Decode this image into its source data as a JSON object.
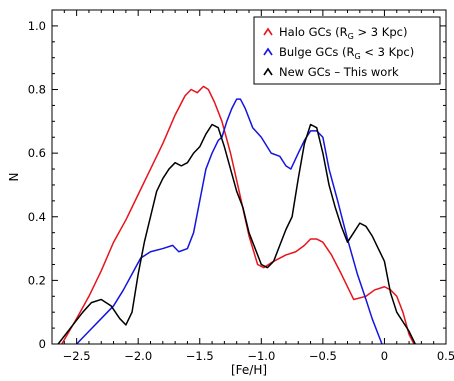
{
  "chart_data": {
    "type": "line",
    "title": "",
    "xlabel": "[Fe/H]",
    "ylabel": "N",
    "xlim": [
      -2.7,
      0.5
    ],
    "ylim": [
      0,
      1.05
    ],
    "xticks": [
      -2.5,
      -2.0,
      -1.5,
      -1.0,
      -0.5,
      0,
      0.5
    ],
    "xtick_labels": [
      "−2.5",
      "−2.0",
      "−1.5",
      "−1.0",
      "−0.5",
      "0",
      "0.5"
    ],
    "yticks": [
      0,
      0.2,
      0.4,
      0.6,
      0.8,
      1.0
    ],
    "ytick_labels": [
      "0",
      "0.2",
      "0.4",
      "0.6",
      "0.8",
      "1.0"
    ],
    "grid": false,
    "legend_position": "top-right",
    "series": [
      {
        "name": "Halo GCs (R_G > 3 Kpc)",
        "legend": {
          "pre": "Halo GCs (R",
          "sub": "G",
          "post": " > 3 Kpc)"
        },
        "color": "#e8141b",
        "points": [
          [
            -2.62,
            0.0
          ],
          [
            -2.5,
            0.08
          ],
          [
            -2.4,
            0.15
          ],
          [
            -2.3,
            0.23
          ],
          [
            -2.2,
            0.32
          ],
          [
            -2.1,
            0.39
          ],
          [
            -2.0,
            0.47
          ],
          [
            -1.9,
            0.55
          ],
          [
            -1.8,
            0.63
          ],
          [
            -1.7,
            0.72
          ],
          [
            -1.62,
            0.78
          ],
          [
            -1.57,
            0.8
          ],
          [
            -1.52,
            0.79
          ],
          [
            -1.47,
            0.81
          ],
          [
            -1.43,
            0.8
          ],
          [
            -1.38,
            0.76
          ],
          [
            -1.32,
            0.7
          ],
          [
            -1.25,
            0.6
          ],
          [
            -1.18,
            0.48
          ],
          [
            -1.1,
            0.34
          ],
          [
            -1.03,
            0.25
          ],
          [
            -0.98,
            0.24
          ],
          [
            -0.9,
            0.26
          ],
          [
            -0.8,
            0.28
          ],
          [
            -0.72,
            0.29
          ],
          [
            -0.65,
            0.31
          ],
          [
            -0.6,
            0.33
          ],
          [
            -0.55,
            0.33
          ],
          [
            -0.5,
            0.32
          ],
          [
            -0.43,
            0.28
          ],
          [
            -0.35,
            0.22
          ],
          [
            -0.25,
            0.14
          ],
          [
            -0.15,
            0.15
          ],
          [
            -0.08,
            0.17
          ],
          [
            0.0,
            0.18
          ],
          [
            0.05,
            0.17
          ],
          [
            0.1,
            0.15
          ],
          [
            0.15,
            0.1
          ],
          [
            0.2,
            0.03
          ],
          [
            0.24,
            0.0
          ]
        ]
      },
      {
        "name": "Bulge GCs (R_G < 3 Kpc)",
        "legend": {
          "pre": "Bulge GCs (R",
          "sub": "G",
          "post": " < 3 Kpc)"
        },
        "color": "#1515e0",
        "points": [
          [
            -2.5,
            0.0
          ],
          [
            -2.4,
            0.04
          ],
          [
            -2.3,
            0.08
          ],
          [
            -2.2,
            0.12
          ],
          [
            -2.12,
            0.17
          ],
          [
            -2.05,
            0.22
          ],
          [
            -1.98,
            0.27
          ],
          [
            -1.9,
            0.29
          ],
          [
            -1.8,
            0.3
          ],
          [
            -1.72,
            0.31
          ],
          [
            -1.67,
            0.29
          ],
          [
            -1.6,
            0.3
          ],
          [
            -1.55,
            0.35
          ],
          [
            -1.5,
            0.45
          ],
          [
            -1.45,
            0.55
          ],
          [
            -1.4,
            0.6
          ],
          [
            -1.35,
            0.64
          ],
          [
            -1.32,
            0.65
          ],
          [
            -1.28,
            0.7
          ],
          [
            -1.24,
            0.74
          ],
          [
            -1.2,
            0.77
          ],
          [
            -1.17,
            0.77
          ],
          [
            -1.13,
            0.74
          ],
          [
            -1.07,
            0.68
          ],
          [
            -1.0,
            0.65
          ],
          [
            -0.92,
            0.6
          ],
          [
            -0.85,
            0.59
          ],
          [
            -0.8,
            0.56
          ],
          [
            -0.76,
            0.55
          ],
          [
            -0.7,
            0.6
          ],
          [
            -0.65,
            0.64
          ],
          [
            -0.6,
            0.67
          ],
          [
            -0.55,
            0.67
          ],
          [
            -0.5,
            0.65
          ],
          [
            -0.45,
            0.55
          ],
          [
            -0.38,
            0.45
          ],
          [
            -0.3,
            0.33
          ],
          [
            -0.22,
            0.22
          ],
          [
            -0.15,
            0.14
          ],
          [
            -0.1,
            0.08
          ],
          [
            -0.05,
            0.03
          ],
          [
            -0.02,
            0.0
          ]
        ]
      },
      {
        "name": "New GCs – This work",
        "legend": {
          "pre": "New GCs – This work",
          "sub": "",
          "post": ""
        },
        "color": "#000000",
        "points": [
          [
            -2.65,
            0.0
          ],
          [
            -2.55,
            0.05
          ],
          [
            -2.45,
            0.1
          ],
          [
            -2.38,
            0.13
          ],
          [
            -2.3,
            0.14
          ],
          [
            -2.22,
            0.12
          ],
          [
            -2.15,
            0.08
          ],
          [
            -2.1,
            0.06
          ],
          [
            -2.05,
            0.1
          ],
          [
            -2.0,
            0.22
          ],
          [
            -1.95,
            0.32
          ],
          [
            -1.9,
            0.4
          ],
          [
            -1.85,
            0.48
          ],
          [
            -1.8,
            0.52
          ],
          [
            -1.75,
            0.55
          ],
          [
            -1.7,
            0.57
          ],
          [
            -1.65,
            0.56
          ],
          [
            -1.6,
            0.57
          ],
          [
            -1.55,
            0.6
          ],
          [
            -1.5,
            0.62
          ],
          [
            -1.45,
            0.66
          ],
          [
            -1.4,
            0.69
          ],
          [
            -1.35,
            0.68
          ],
          [
            -1.3,
            0.62
          ],
          [
            -1.25,
            0.55
          ],
          [
            -1.2,
            0.48
          ],
          [
            -1.15,
            0.43
          ],
          [
            -1.1,
            0.35
          ],
          [
            -1.05,
            0.3
          ],
          [
            -1.0,
            0.25
          ],
          [
            -0.95,
            0.24
          ],
          [
            -0.9,
            0.26
          ],
          [
            -0.85,
            0.31
          ],
          [
            -0.8,
            0.36
          ],
          [
            -0.75,
            0.4
          ],
          [
            -0.7,
            0.52
          ],
          [
            -0.65,
            0.63
          ],
          [
            -0.6,
            0.69
          ],
          [
            -0.55,
            0.68
          ],
          [
            -0.5,
            0.6
          ],
          [
            -0.45,
            0.5
          ],
          [
            -0.4,
            0.43
          ],
          [
            -0.35,
            0.37
          ],
          [
            -0.3,
            0.32
          ],
          [
            -0.25,
            0.35
          ],
          [
            -0.2,
            0.38
          ],
          [
            -0.15,
            0.37
          ],
          [
            -0.1,
            0.34
          ],
          [
            -0.05,
            0.3
          ],
          [
            0.0,
            0.26
          ],
          [
            0.05,
            0.16
          ],
          [
            0.1,
            0.1
          ],
          [
            0.15,
            0.07
          ],
          [
            0.2,
            0.04
          ],
          [
            0.25,
            0.0
          ]
        ]
      }
    ]
  }
}
